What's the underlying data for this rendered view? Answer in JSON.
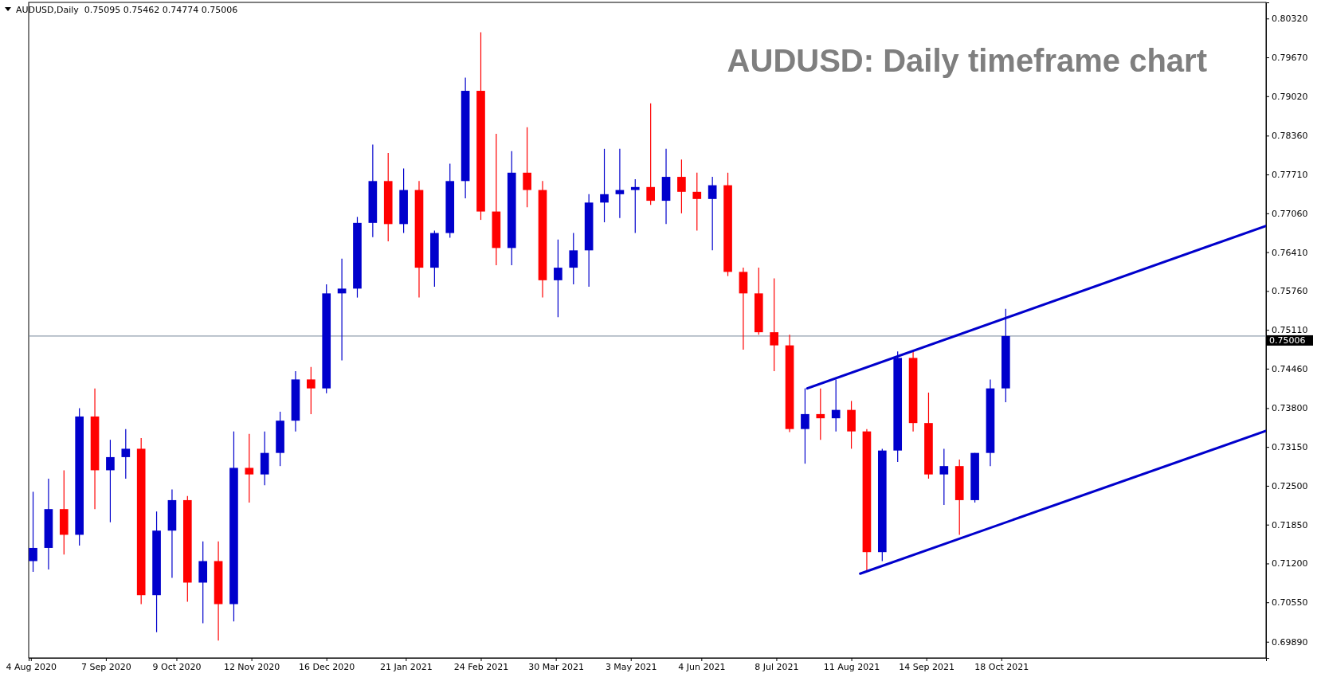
{
  "chart_data": {
    "type": "candlestick",
    "title": "AUDUSD: Daily timeframe chart",
    "subtitle": "AUDUSD,Daily  0.75095 0.75462 0.74774 0.75006",
    "xlim": [
      "2020-08-03",
      "2022-02-15"
    ],
    "xticks": [
      {
        "value": "2020-08-04",
        "label": "4 Aug 2020"
      },
      {
        "value": "2020-09-07",
        "label": "7 Sep 2020"
      },
      {
        "value": "2020-10-09",
        "label": "9 Oct 2020"
      },
      {
        "value": "2020-11-12",
        "label": "12 Nov 2020"
      },
      {
        "value": "2020-12-16",
        "label": "16 Dec 2020"
      },
      {
        "value": "2021-01-21",
        "label": "21 Jan 2021"
      },
      {
        "value": "2021-02-24",
        "label": "24 Feb 2021"
      },
      {
        "value": "2021-03-30",
        "label": "30 Mar 2021"
      },
      {
        "value": "2021-05-03",
        "label": "3 May 2021"
      },
      {
        "value": "2021-06-04",
        "label": "4 Jun 2021"
      },
      {
        "value": "2021-07-08",
        "label": "8 Jul 2021"
      },
      {
        "value": "2021-08-11",
        "label": "11 Aug 2021"
      },
      {
        "value": "2021-09-14",
        "label": "14 Sep 2021"
      },
      {
        "value": "2021-10-18",
        "label": "18 Oct 2021"
      }
    ],
    "ylim": [
      0.6962,
      0.8059
    ],
    "yticks": [
      {
        "value": 0.6989,
        "label": "0.69890"
      },
      {
        "value": 0.7055,
        "label": "0.70550"
      },
      {
        "value": 0.712,
        "label": "0.71200"
      },
      {
        "value": 0.7185,
        "label": "0.71850"
      },
      {
        "value": 0.725,
        "label": "0.72500"
      },
      {
        "value": 0.7315,
        "label": "0.73150"
      },
      {
        "value": 0.738,
        "label": "0.73800"
      },
      {
        "value": 0.7446,
        "label": "0.74460"
      },
      {
        "value": 0.7511,
        "label": "0.75110"
      },
      {
        "value": 0.7576,
        "label": "0.75760"
      },
      {
        "value": 0.7641,
        "label": "0.76410"
      },
      {
        "value": 0.7706,
        "label": "0.77060"
      },
      {
        "value": 0.7771,
        "label": "0.77710"
      },
      {
        "value": 0.7836,
        "label": "0.78360"
      },
      {
        "value": 0.7902,
        "label": "0.79020"
      },
      {
        "value": 0.7967,
        "label": "0.79670"
      },
      {
        "value": 0.8032,
        "label": "0.80320"
      }
    ],
    "ref_lines": [
      {
        "axis": "y",
        "value": 0.75006,
        "label": "0.75006",
        "color": "#778899"
      }
    ],
    "x": [
      "2020-08-05",
      "2020-08-12",
      "2020-08-19",
      "2020-08-26",
      "2020-09-02",
      "2020-09-09",
      "2020-09-16",
      "2020-09-23",
      "2020-09-30",
      "2020-10-07",
      "2020-10-14",
      "2020-10-21",
      "2020-10-28",
      "2020-11-04",
      "2020-11-11",
      "2020-11-18",
      "2020-11-25",
      "2020-12-02",
      "2020-12-09",
      "2020-12-16",
      "2020-12-23",
      "2020-12-30",
      "2021-01-06",
      "2021-01-13",
      "2021-01-20",
      "2021-01-27",
      "2021-02-03",
      "2021-02-10",
      "2021-02-17",
      "2021-02-24",
      "2021-03-03",
      "2021-03-10",
      "2021-03-17",
      "2021-03-24",
      "2021-03-31",
      "2021-04-07",
      "2021-04-14",
      "2021-04-21",
      "2021-04-28",
      "2021-05-05",
      "2021-05-12",
      "2021-05-19",
      "2021-05-26",
      "2021-06-02",
      "2021-06-09",
      "2021-06-16",
      "2021-06-23",
      "2021-06-30",
      "2021-07-07",
      "2021-07-14",
      "2021-07-21",
      "2021-07-28",
      "2021-08-04",
      "2021-08-11",
      "2021-08-18",
      "2021-08-25",
      "2021-09-01",
      "2021-09-08",
      "2021-09-15",
      "2021-09-22",
      "2021-09-29",
      "2021-10-06",
      "2021-10-13",
      "2021-10-20"
    ],
    "ohlc": [
      [
        0.7124,
        0.724,
        0.7106,
        0.7146
      ],
      [
        0.7146,
        0.7262,
        0.711,
        0.7211
      ],
      [
        0.7211,
        0.7276,
        0.7135,
        0.7168
      ],
      [
        0.7168,
        0.738,
        0.715,
        0.7366
      ],
      [
        0.7366,
        0.7413,
        0.7211,
        0.7276
      ],
      [
        0.7276,
        0.7327,
        0.7189,
        0.7298
      ],
      [
        0.7298,
        0.7345,
        0.7262,
        0.7312
      ],
      [
        0.7312,
        0.733,
        0.7052,
        0.7067
      ],
      [
        0.7067,
        0.7207,
        0.7005,
        0.7175
      ],
      [
        0.7175,
        0.7244,
        0.7096,
        0.7226
      ],
      [
        0.7226,
        0.7233,
        0.7056,
        0.7088
      ],
      [
        0.7088,
        0.7157,
        0.702,
        0.7124
      ],
      [
        0.7124,
        0.7157,
        0.6991,
        0.7052
      ],
      [
        0.7052,
        0.7341,
        0.7023,
        0.728
      ],
      [
        0.728,
        0.7337,
        0.7222,
        0.7269
      ],
      [
        0.7269,
        0.7341,
        0.7251,
        0.7305
      ],
      [
        0.7305,
        0.7374,
        0.7283,
        0.7359
      ],
      [
        0.7359,
        0.7442,
        0.7341,
        0.7428
      ],
      [
        0.7428,
        0.7449,
        0.737,
        0.7413
      ],
      [
        0.7413,
        0.7587,
        0.7405,
        0.7572
      ],
      [
        0.7572,
        0.763,
        0.746,
        0.758
      ],
      [
        0.758,
        0.77,
        0.7565,
        0.769
      ],
      [
        0.769,
        0.7821,
        0.7666,
        0.776
      ],
      [
        0.776,
        0.7807,
        0.7659,
        0.7688
      ],
      [
        0.7688,
        0.7781,
        0.7673,
        0.7745
      ],
      [
        0.7745,
        0.776,
        0.7565,
        0.7615
      ],
      [
        0.7615,
        0.7677,
        0.7583,
        0.7673
      ],
      [
        0.7673,
        0.7789,
        0.7665,
        0.776
      ],
      [
        0.776,
        0.7933,
        0.7731,
        0.7911
      ],
      [
        0.7911,
        0.8009,
        0.7695,
        0.7709
      ],
      [
        0.7709,
        0.7839,
        0.7619,
        0.7648
      ],
      [
        0.7648,
        0.781,
        0.7619,
        0.7774
      ],
      [
        0.7774,
        0.785,
        0.7716,
        0.7745
      ],
      [
        0.7745,
        0.776,
        0.7565,
        0.7594
      ],
      [
        0.7594,
        0.7662,
        0.7532,
        0.7615
      ],
      [
        0.7615,
        0.7673,
        0.7587,
        0.7644
      ],
      [
        0.7644,
        0.7738,
        0.7583,
        0.7724
      ],
      [
        0.7724,
        0.7814,
        0.7691,
        0.7738
      ],
      [
        0.7738,
        0.7814,
        0.7698,
        0.7745
      ],
      [
        0.7745,
        0.7763,
        0.7673,
        0.775
      ],
      [
        0.775,
        0.789,
        0.772,
        0.7727
      ],
      [
        0.7727,
        0.7814,
        0.7688,
        0.7767
      ],
      [
        0.7767,
        0.7796,
        0.7706,
        0.7742
      ],
      [
        0.7742,
        0.7774,
        0.7677,
        0.773
      ],
      [
        0.773,
        0.7767,
        0.7644,
        0.7753
      ],
      [
        0.7753,
        0.7774,
        0.7601,
        0.7608
      ],
      [
        0.7608,
        0.7615,
        0.7478,
        0.7572
      ],
      [
        0.7572,
        0.7615,
        0.7503,
        0.7507
      ],
      [
        0.7507,
        0.7597,
        0.7442,
        0.7485
      ],
      [
        0.7485,
        0.7503,
        0.734,
        0.7345
      ],
      [
        0.7345,
        0.7413,
        0.7287,
        0.737
      ],
      [
        0.737,
        0.7413,
        0.7327,
        0.7363
      ],
      [
        0.7363,
        0.7428,
        0.7341,
        0.7377
      ],
      [
        0.7377,
        0.7392,
        0.7312,
        0.7341
      ],
      [
        0.7341,
        0.7345,
        0.7106,
        0.7139
      ],
      [
        0.7139,
        0.7312,
        0.7124,
        0.7309
      ],
      [
        0.7309,
        0.7475,
        0.729,
        0.7464
      ],
      [
        0.7464,
        0.7475,
        0.7341,
        0.7355
      ],
      [
        0.7355,
        0.7406,
        0.7262,
        0.7269
      ],
      [
        0.7269,
        0.7312,
        0.7218,
        0.7283
      ],
      [
        0.7283,
        0.7294,
        0.7168,
        0.7226
      ],
      [
        0.7226,
        0.7305,
        0.7222,
        0.7305
      ],
      [
        0.7305,
        0.7428,
        0.7283,
        0.7413
      ],
      [
        0.7413,
        0.75462,
        0.739,
        0.75006
      ]
    ],
    "colors": [
      "#0000cc",
      "#0000cc",
      "#ff0000",
      "#0000cc",
      "#ff0000",
      "#0000cc",
      "#0000cc",
      "#ff0000",
      "#0000cc",
      "#0000cc",
      "#ff0000",
      "#0000cc",
      "#ff0000",
      "#0000cc",
      "#ff0000",
      "#0000cc",
      "#0000cc",
      "#0000cc",
      "#ff0000",
      "#0000cc",
      "#0000cc",
      "#0000cc",
      "#0000cc",
      "#ff0000",
      "#0000cc",
      "#ff0000",
      "#0000cc",
      "#0000cc",
      "#0000cc",
      "#ff0000",
      "#ff0000",
      "#0000cc",
      "#ff0000",
      "#ff0000",
      "#0000cc",
      "#0000cc",
      "#0000cc",
      "#0000cc",
      "#0000cc",
      "#0000cc",
      "#ff0000",
      "#0000cc",
      "#ff0000",
      "#ff0000",
      "#0000cc",
      "#ff0000",
      "#ff0000",
      "#ff0000",
      "#ff0000",
      "#ff0000",
      "#0000cc",
      "#ff0000",
      "#0000cc",
      "#ff0000",
      "#ff0000",
      "#0000cc",
      "#0000cc",
      "#ff0000",
      "#ff0000",
      "#0000cc",
      "#ff0000",
      "#0000cc",
      "#0000cc",
      "#0000cc"
    ],
    "series": [
      {
        "type": "line",
        "x": [
          "2021-07-22",
          "2022-02-15"
        ],
        "values": [
          0.7413,
          0.7685
        ],
        "color": "#0000cc"
      },
      {
        "type": "line",
        "x": [
          "2021-08-15",
          "2022-02-15"
        ],
        "values": [
          0.7103,
          0.7342
        ],
        "color": "#0000cc"
      }
    ]
  }
}
